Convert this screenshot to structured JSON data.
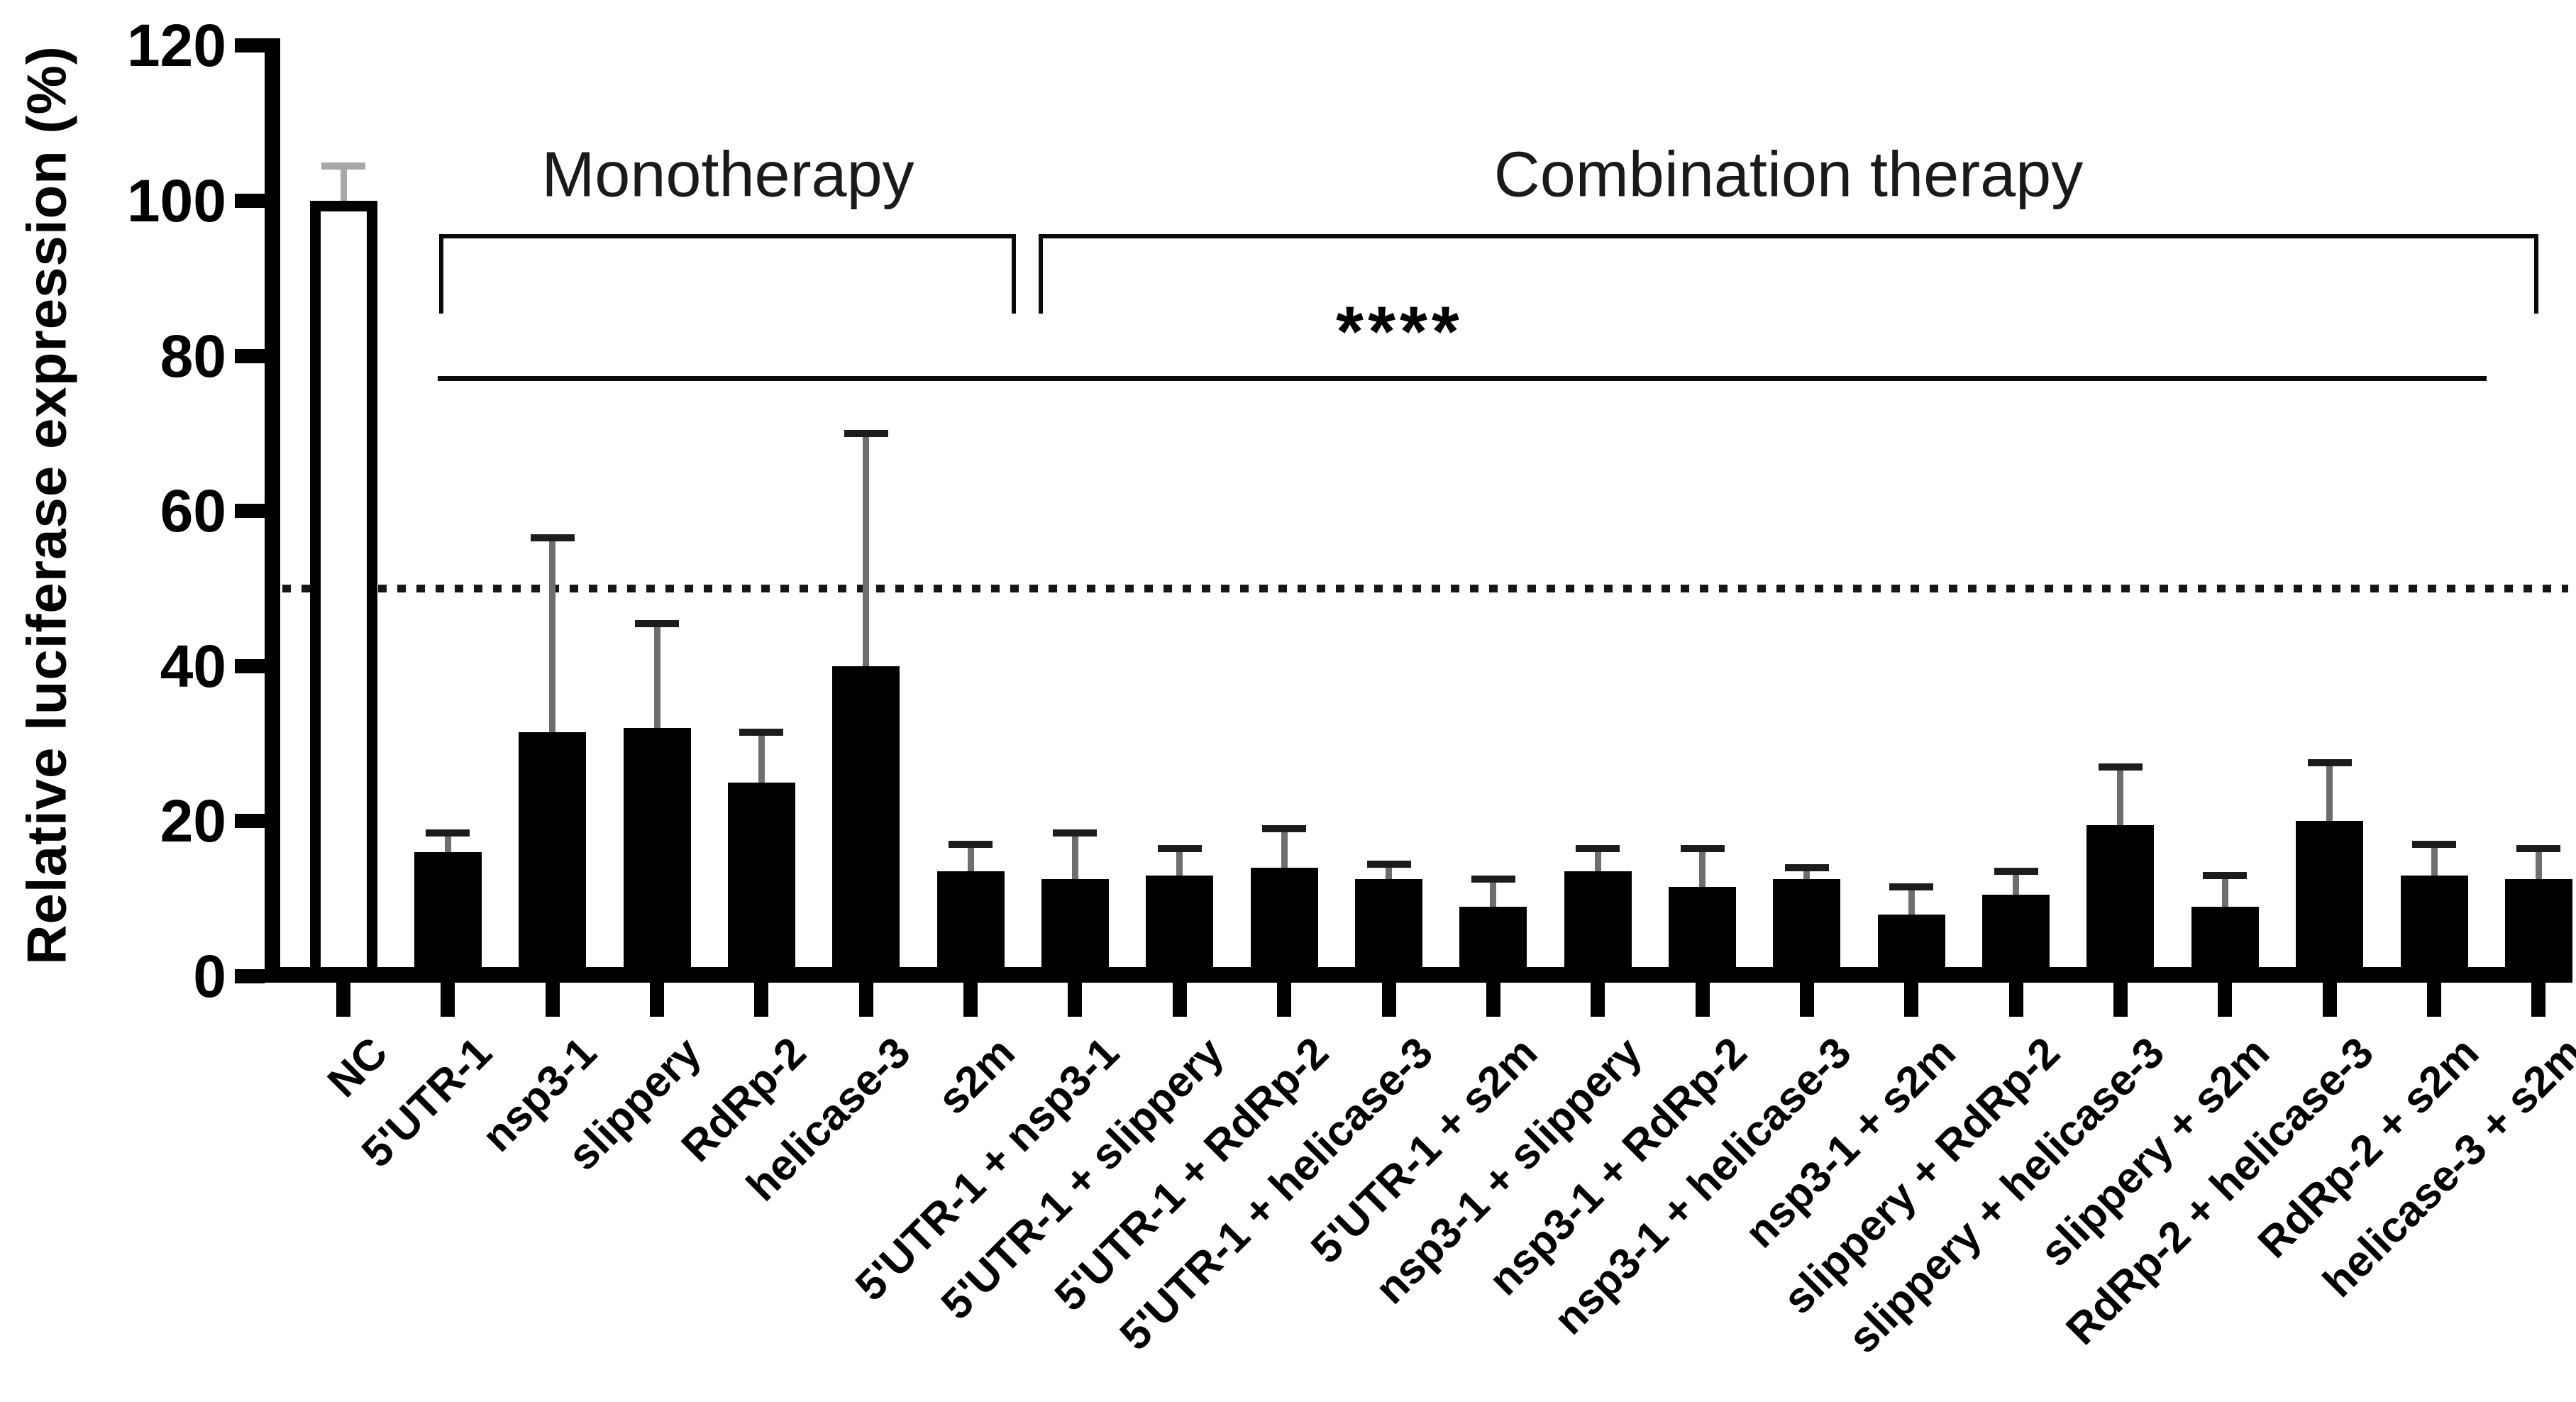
{
  "chart_data": {
    "type": "bar",
    "title": "",
    "ylabel": "Relative luciferase expression (%)",
    "xlabel": "",
    "ylim": [
      0,
      120
    ],
    "yticks": [
      0,
      20,
      40,
      60,
      80,
      100,
      120
    ],
    "grid": false,
    "legend_position": "none",
    "categories": [
      "NC",
      "5'UTR-1",
      "nsp3-1",
      "slippery",
      "RdRp-2",
      "helicase-3",
      "s2m",
      "5'UTR-1 + nsp3-1",
      "5'UTR-1 + slippery",
      "5'UTR-1 + RdRp-2",
      "5'UTR-1 + helicase-3",
      "5'UTR-1 + s2m",
      "nsp3-1 + slippery",
      "nsp3-1 + RdRp-2",
      "nsp3-1 + helicase-3",
      "nsp3-1 + s2m",
      "slippery + RdRp-2",
      "slippery + helicase-3",
      "slippery + s2m",
      "RdRp-2 + helicase-3",
      "RdRp-2 + s2m",
      "helicase-3 + s2m"
    ],
    "values": [
      100,
      16,
      31.5,
      32,
      25,
      40,
      13.5,
      12.5,
      13,
      14,
      12.5,
      9,
      13.5,
      11.5,
      12.5,
      8,
      10.5,
      19.5,
      9,
      20,
      13,
      12.5
    ],
    "errors_plus": [
      4.5,
      2.5,
      25,
      13.5,
      6.5,
      30,
      3.5,
      6,
      3.5,
      5,
      2,
      3.5,
      3,
      5,
      1.5,
      3.5,
      3,
      7.5,
      4,
      7.5,
      4,
      4
    ],
    "bar_styles": [
      "outline",
      "solid",
      "solid",
      "solid",
      "solid",
      "solid",
      "solid",
      "solid",
      "solid",
      "solid",
      "solid",
      "solid",
      "solid",
      "solid",
      "solid",
      "solid",
      "solid",
      "solid",
      "solid",
      "solid",
      "solid",
      "solid"
    ],
    "colors": {
      "bar": "#000000",
      "nc_fill": "#ffffff",
      "axis": "#000000",
      "error_line": "#6e6e6e",
      "error_cap": "#1c1c1c",
      "nc_error": "#a8a8a8",
      "text": "#000000"
    },
    "reference_line": {
      "value": 50,
      "style": "dotted"
    },
    "annotations": {
      "group_brackets": [
        {
          "label": "Monotherapy",
          "from": "5'UTR-1",
          "to": "s2m"
        },
        {
          "label": "Combination therapy",
          "from": "5'UTR-1 + nsp3-1",
          "to": "helicase-3 + s2m"
        }
      ],
      "significance": {
        "label": "****",
        "from": "5'UTR-1",
        "to": "helicase-3 + s2m"
      }
    }
  }
}
